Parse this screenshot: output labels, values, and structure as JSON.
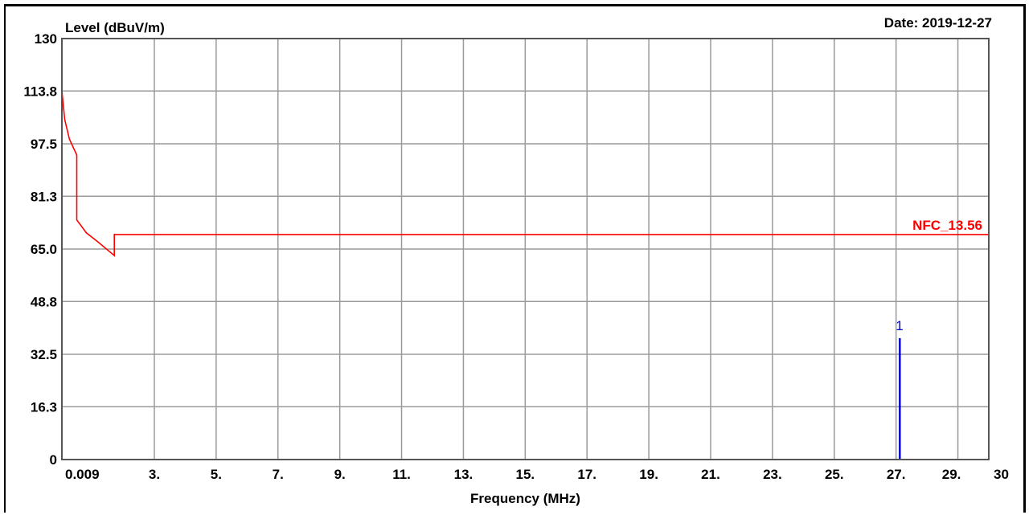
{
  "chart_data": {
    "type": "line",
    "date_label": "Date: 2019-12-27",
    "ylabel": "Level (dBuV/m)",
    "xlabel": "Frequency (MHz)",
    "y_ticks": [
      "0",
      "16.3",
      "32.5",
      "48.8",
      "65.0",
      "81.3",
      "97.5",
      "113.8",
      "130"
    ],
    "ylim": [
      0,
      130
    ],
    "x_ticks": [
      {
        "label": "0.009",
        "value": 0.009
      },
      {
        "label": "3.",
        "value": 3
      },
      {
        "label": "5.",
        "value": 5
      },
      {
        "label": "7.",
        "value": 7
      },
      {
        "label": "9.",
        "value": 9
      },
      {
        "label": "11.",
        "value": 11
      },
      {
        "label": "13.",
        "value": 13
      },
      {
        "label": "15.",
        "value": 15
      },
      {
        "label": "17.",
        "value": 17
      },
      {
        "label": "19.",
        "value": 19
      },
      {
        "label": "21.",
        "value": 21
      },
      {
        "label": "23.",
        "value": 23
      },
      {
        "label": "25.",
        "value": 25
      },
      {
        "label": "27.",
        "value": 27
      },
      {
        "label": "29.",
        "value": 29
      },
      {
        "label": "30",
        "value": 30
      }
    ],
    "grid": true,
    "series": [
      {
        "name": "NFC_13.56",
        "color": "#ff0000",
        "points": [
          [
            0.009,
            130
          ],
          [
            0.009,
            113.8
          ],
          [
            0.1,
            105
          ],
          [
            0.25,
            99
          ],
          [
            0.49,
            94
          ],
          [
            0.49,
            74
          ],
          [
            0.8,
            70
          ],
          [
            1.2,
            67
          ],
          [
            1.705,
            63
          ],
          [
            1.705,
            69.5
          ],
          [
            30,
            69.5
          ]
        ]
      }
    ],
    "markers": [
      {
        "label": "1",
        "color": "#0000cc",
        "frequency": 27.12,
        "level": 37.5
      }
    ]
  }
}
